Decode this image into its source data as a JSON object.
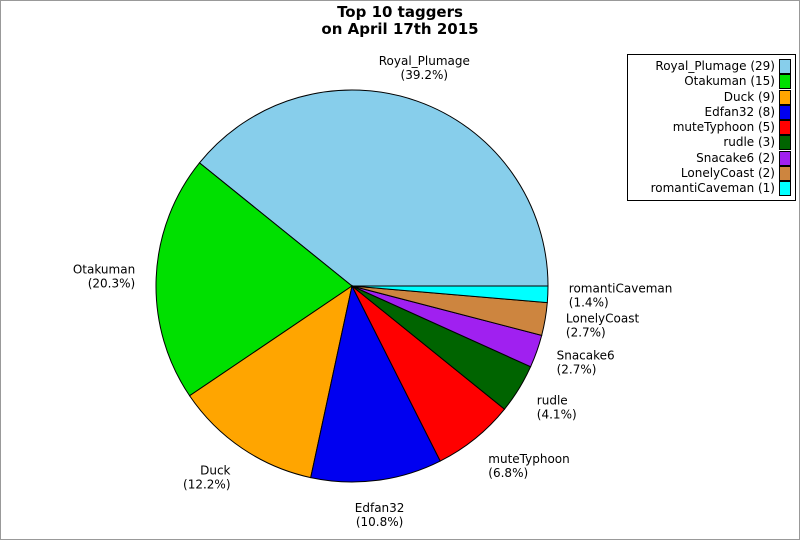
{
  "frame": {
    "border_color": "#999999",
    "background_color": "#FFFFFF"
  },
  "title": {
    "line1": "Top 10 taggers",
    "line2": "on April 17th 2015"
  },
  "chart_data": {
    "type": "pie",
    "title": "Top 10 taggers on April 17th 2015",
    "start_angle_deg": 0,
    "direction": "counterclockwise",
    "legend_position": "upper-right",
    "legend_label_format": "name (count)",
    "slice_label_format": "name (percent%)",
    "series": [
      {
        "name": "Royal_Plumage",
        "value": 29,
        "percent_label": "39.2",
        "color": "#87CEEB"
      },
      {
        "name": "Otakuman",
        "value": 15,
        "percent_label": "20.3",
        "color": "#00E000"
      },
      {
        "name": "Duck",
        "value": 9,
        "percent_label": "12.2",
        "color": "#FFA500"
      },
      {
        "name": "Edfan32",
        "value": 8,
        "percent_label": "10.8",
        "color": "#0000F0"
      },
      {
        "name": "muteTyphoon",
        "value": 5,
        "percent_label": "6.8",
        "color": "#FF0000"
      },
      {
        "name": "rudle",
        "value": 3,
        "percent_label": "4.1",
        "color": "#006400"
      },
      {
        "name": "Snacake6",
        "value": 2,
        "percent_label": "2.7",
        "color": "#A020F0"
      },
      {
        "name": "LonelyCoast",
        "value": 2,
        "percent_label": "2.7",
        "color": "#CD853F"
      },
      {
        "name": "romantiCaveman",
        "value": 1,
        "percent_label": "1.4",
        "color": "#00FFFF"
      }
    ]
  }
}
